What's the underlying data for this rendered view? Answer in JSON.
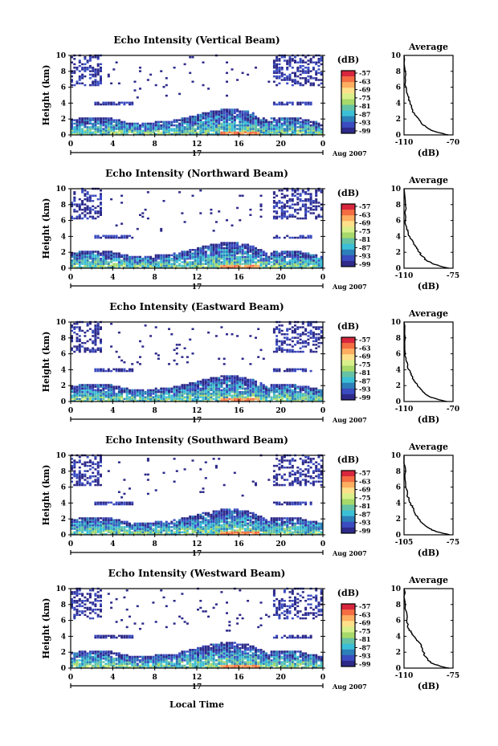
{
  "chart_data": {
    "type": "heatmap",
    "panels": [
      {
        "title": "Echo Intensity (Vertical Beam)",
        "avg_title": "Average",
        "avg_xticks": [
          "-110",
          "-70"
        ],
        "avg_xrange": [
          -110,
          -70
        ],
        "avg_profile": [
          {
            "h": 0.0,
            "v": -74
          },
          {
            "h": 0.3,
            "v": -82
          },
          {
            "h": 0.6,
            "v": -88
          },
          {
            "h": 1.0,
            "v": -92
          },
          {
            "h": 1.5,
            "v": -96
          },
          {
            "h": 2.0,
            "v": -98
          },
          {
            "h": 2.5,
            "v": -101
          },
          {
            "h": 3.0,
            "v": -103
          },
          {
            "h": 3.5,
            "v": -104
          },
          {
            "h": 4.0,
            "v": -105
          },
          {
            "h": 4.5,
            "v": -106
          },
          {
            "h": 5.0,
            "v": -107
          },
          {
            "h": 5.5,
            "v": -108
          },
          {
            "h": 6.5,
            "v": -109
          },
          {
            "h": 8.0,
            "v": -109
          },
          {
            "h": 10.0,
            "v": -110
          }
        ]
      },
      {
        "title": "Echo Intensity (Northward Beam)",
        "avg_title": "Average",
        "avg_xticks": [
          "-110",
          "-75"
        ],
        "avg_xrange": [
          -110,
          -75
        ],
        "avg_profile": [
          {
            "h": 0.0,
            "v": -78
          },
          {
            "h": 0.3,
            "v": -85
          },
          {
            "h": 0.6,
            "v": -90
          },
          {
            "h": 1.0,
            "v": -94
          },
          {
            "h": 1.5,
            "v": -97
          },
          {
            "h": 2.0,
            "v": -99
          },
          {
            "h": 2.5,
            "v": -101
          },
          {
            "h": 3.0,
            "v": -103
          },
          {
            "h": 3.5,
            "v": -104
          },
          {
            "h": 4.0,
            "v": -106
          },
          {
            "h": 4.5,
            "v": -107
          },
          {
            "h": 5.0,
            "v": -108
          },
          {
            "h": 6.0,
            "v": -109
          },
          {
            "h": 8.0,
            "v": -109
          },
          {
            "h": 10.0,
            "v": -110
          }
        ]
      },
      {
        "title": "Echo Intensity (Eastward Beam)",
        "avg_title": "Average",
        "avg_xticks": [
          "-110",
          "-70"
        ],
        "avg_xrange": [
          -110,
          -70
        ],
        "avg_profile": [
          {
            "h": 0.0,
            "v": -75
          },
          {
            "h": 0.3,
            "v": -83
          },
          {
            "h": 0.6,
            "v": -89
          },
          {
            "h": 1.0,
            "v": -93
          },
          {
            "h": 1.5,
            "v": -96
          },
          {
            "h": 2.0,
            "v": -99
          },
          {
            "h": 2.5,
            "v": -101
          },
          {
            "h": 3.0,
            "v": -103
          },
          {
            "h": 3.5,
            "v": -104
          },
          {
            "h": 4.0,
            "v": -106
          },
          {
            "h": 4.5,
            "v": -107
          },
          {
            "h": 5.0,
            "v": -108
          },
          {
            "h": 6.0,
            "v": -109
          },
          {
            "h": 8.0,
            "v": -109
          },
          {
            "h": 10.0,
            "v": -110
          }
        ]
      },
      {
        "title": "Echo Intensity (Southward Beam)",
        "avg_title": "Average",
        "avg_xticks": [
          "-105",
          "-75"
        ],
        "avg_xrange": [
          -105,
          -75
        ],
        "avg_profile": [
          {
            "h": 0.0,
            "v": -77
          },
          {
            "h": 0.3,
            "v": -83
          },
          {
            "h": 0.6,
            "v": -88
          },
          {
            "h": 1.0,
            "v": -91
          },
          {
            "h": 1.5,
            "v": -94
          },
          {
            "h": 2.0,
            "v": -96
          },
          {
            "h": 2.5,
            "v": -98
          },
          {
            "h": 3.0,
            "v": -99
          },
          {
            "h": 3.5,
            "v": -100
          },
          {
            "h": 4.0,
            "v": -101
          },
          {
            "h": 4.5,
            "v": -102
          },
          {
            "h": 5.0,
            "v": -103
          },
          {
            "h": 6.0,
            "v": -104
          },
          {
            "h": 8.0,
            "v": -104
          },
          {
            "h": 10.0,
            "v": -105
          }
        ]
      },
      {
        "title": "Echo Intensity (Westward Beam)",
        "avg_title": "Average",
        "avg_xticks": [
          "-110",
          "-75"
        ],
        "avg_xrange": [
          -110,
          -75
        ],
        "avg_profile": [
          {
            "h": 0.0,
            "v": -78
          },
          {
            "h": 0.3,
            "v": -85
          },
          {
            "h": 0.6,
            "v": -90
          },
          {
            "h": 1.0,
            "v": -93
          },
          {
            "h": 1.5,
            "v": -95
          },
          {
            "h": 2.0,
            "v": -96
          },
          {
            "h": 2.5,
            "v": -97
          },
          {
            "h": 3.0,
            "v": -98
          },
          {
            "h": 3.5,
            "v": -101
          },
          {
            "h": 4.0,
            "v": -103
          },
          {
            "h": 4.5,
            "v": -105
          },
          {
            "h": 5.0,
            "v": -107
          },
          {
            "h": 6.0,
            "v": -108
          },
          {
            "h": 8.0,
            "v": -109
          },
          {
            "h": 10.0,
            "v": -110
          }
        ]
      }
    ],
    "ylabel": "Height (km)",
    "yrange": [
      0,
      10
    ],
    "yticks": [
      "0",
      "2",
      "4",
      "6",
      "8",
      "10"
    ],
    "xrange": [
      0,
      24
    ],
    "xticks": [
      "0",
      "4",
      "8",
      "12",
      "16",
      "20",
      "0"
    ],
    "date_day": "17",
    "date_label": "Aug 2007",
    "xlabel": "Local Time",
    "avg_xlabel": "(dB)",
    "colorbar": {
      "unit": "(dB)",
      "ticks": [
        "-57",
        "-63",
        "-69",
        "-75",
        "-81",
        "-87",
        "-93",
        "-99"
      ],
      "colors": [
        "#d7263d",
        "#f46d43",
        "#fdae61",
        "#fee08b",
        "#d9ef8b",
        "#a6d96a",
        "#66c2a5",
        "#3bbfd6",
        "#2c7fb8",
        "#3b4cc0",
        "#2d2a8a"
      ]
    }
  }
}
